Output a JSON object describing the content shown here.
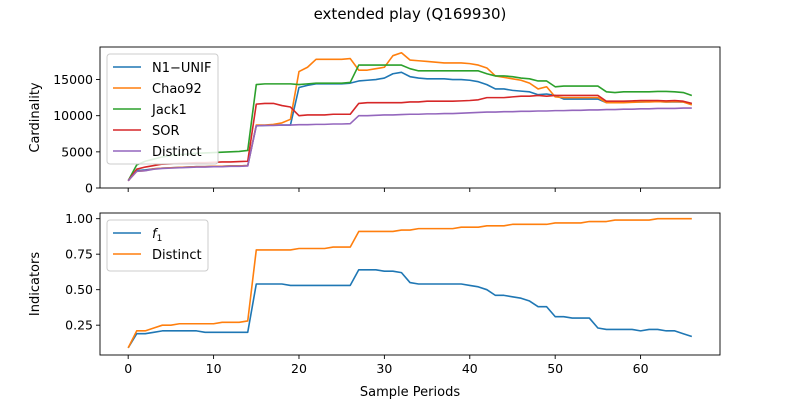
{
  "figure": {
    "title": "extended play (Q169930)",
    "xlabel": "Sample Periods"
  },
  "chart_data": [
    {
      "type": "line",
      "ylabel": "Cardinality",
      "xlim": [
        -3.3,
        69.3
      ],
      "ylim": [
        0,
        19500
      ],
      "xticks": [
        0,
        10,
        20,
        30,
        40,
        50,
        60
      ],
      "yticks": [
        0,
        5000,
        10000,
        15000
      ],
      "show_xtick_labels": false,
      "legend": "upper-left",
      "series": [
        {
          "name": "N1−UNIF",
          "color": "#1f77b4",
          "x": [
            0,
            1,
            2,
            3,
            4,
            5,
            6,
            7,
            8,
            9,
            10,
            11,
            12,
            13,
            14,
            15,
            16,
            17,
            18,
            19,
            20,
            21,
            22,
            23,
            24,
            25,
            26,
            27,
            28,
            29,
            30,
            31,
            32,
            33,
            34,
            35,
            36,
            37,
            38,
            39,
            40,
            41,
            42,
            43,
            44,
            45,
            46,
            47,
            48,
            49,
            50,
            51,
            52,
            53,
            54,
            55,
            56,
            57,
            58,
            59,
            60,
            61,
            62,
            63,
            64,
            65,
            66
          ],
          "values": [
            1000,
            2400,
            2500,
            2650,
            2750,
            2800,
            2850,
            2900,
            2950,
            2950,
            3000,
            3000,
            3050,
            3050,
            3100,
            8600,
            8650,
            8700,
            8700,
            8700,
            13900,
            14200,
            14400,
            14400,
            14400,
            14400,
            14500,
            14800,
            14900,
            15000,
            15200,
            15800,
            16000,
            15400,
            15200,
            15100,
            15100,
            15100,
            15000,
            15000,
            14900,
            14700,
            14300,
            13700,
            13700,
            13500,
            13400,
            13300,
            12900,
            13000,
            12800,
            12300,
            12300,
            12300,
            12300,
            12300,
            11800,
            11800,
            11850,
            11900,
            11900,
            11950,
            11950,
            11900,
            11900,
            11900,
            11600
          ]
        },
        {
          "name": "Chao92",
          "color": "#ff7f0e",
          "x": [
            0,
            1,
            2,
            3,
            4,
            5,
            6,
            7,
            8,
            9,
            10,
            11,
            12,
            13,
            14,
            15,
            16,
            17,
            18,
            19,
            20,
            21,
            22,
            23,
            24,
            25,
            26,
            27,
            28,
            29,
            30,
            31,
            32,
            33,
            34,
            35,
            36,
            37,
            38,
            39,
            40,
            41,
            42,
            43,
            44,
            45,
            46,
            47,
            48,
            49,
            50,
            51,
            52,
            53,
            54,
            55,
            56,
            57,
            58,
            59,
            60,
            61,
            62,
            63,
            64,
            65,
            66
          ],
          "values": [
            1000,
            2300,
            2400,
            2650,
            2750,
            2800,
            2850,
            2900,
            2950,
            2950,
            3000,
            3000,
            3050,
            3050,
            3100,
            8700,
            8700,
            8800,
            9000,
            9500,
            16100,
            16700,
            17800,
            17800,
            17800,
            17800,
            17900,
            16300,
            16300,
            16500,
            16700,
            18300,
            18700,
            17700,
            17600,
            17500,
            17400,
            17300,
            17300,
            17300,
            17200,
            17000,
            16600,
            15500,
            15300,
            15100,
            14900,
            14500,
            13700,
            14000,
            12600,
            12500,
            12500,
            12500,
            12500,
            12500,
            11800,
            11800,
            11800,
            11850,
            11900,
            11900,
            11950,
            11900,
            11950,
            11900,
            11500
          ]
        },
        {
          "name": "Jack1",
          "color": "#2ca02c",
          "x": [
            0,
            1,
            2,
            3,
            4,
            5,
            6,
            7,
            8,
            9,
            10,
            11,
            12,
            13,
            14,
            15,
            16,
            17,
            18,
            19,
            20,
            21,
            22,
            23,
            24,
            25,
            26,
            27,
            28,
            29,
            30,
            31,
            32,
            33,
            34,
            35,
            36,
            37,
            38,
            39,
            40,
            41,
            42,
            43,
            44,
            45,
            46,
            47,
            48,
            49,
            50,
            51,
            52,
            53,
            54,
            55,
            56,
            57,
            58,
            59,
            60,
            61,
            62,
            63,
            64,
            65,
            66
          ],
          "values": [
            1000,
            3200,
            3700,
            4000,
            4300,
            4500,
            4600,
            4700,
            4800,
            4850,
            4900,
            4950,
            5000,
            5050,
            5200,
            14300,
            14400,
            14400,
            14400,
            14400,
            14300,
            14400,
            14500,
            14500,
            14500,
            14500,
            14600,
            17000,
            17000,
            17000,
            17000,
            17000,
            17000,
            16500,
            16200,
            16200,
            16200,
            16200,
            16200,
            16200,
            16200,
            16200,
            15800,
            15500,
            15500,
            15400,
            15200,
            15100,
            14800,
            14800,
            14000,
            14100,
            14100,
            14100,
            14100,
            14100,
            13300,
            13200,
            13300,
            13300,
            13300,
            13300,
            13350,
            13350,
            13300,
            13200,
            12800
          ]
        },
        {
          "name": "SOR",
          "color": "#d62728",
          "x": [
            0,
            1,
            2,
            3,
            4,
            5,
            6,
            7,
            8,
            9,
            10,
            11,
            12,
            13,
            14,
            15,
            16,
            17,
            18,
            19,
            20,
            21,
            22,
            23,
            24,
            25,
            26,
            27,
            28,
            29,
            30,
            31,
            32,
            33,
            34,
            35,
            36,
            37,
            38,
            39,
            40,
            41,
            42,
            43,
            44,
            45,
            46,
            47,
            48,
            49,
            50,
            51,
            52,
            53,
            54,
            55,
            56,
            57,
            58,
            59,
            60,
            61,
            62,
            63,
            64,
            65,
            66
          ],
          "values": [
            1000,
            2600,
            2900,
            3100,
            3300,
            3350,
            3400,
            3450,
            3500,
            3500,
            3550,
            3600,
            3600,
            3650,
            3700,
            11600,
            11700,
            11700,
            11400,
            11200,
            10000,
            10100,
            10100,
            10100,
            10200,
            10200,
            10200,
            11700,
            11800,
            11800,
            11800,
            11800,
            11800,
            11900,
            11900,
            12000,
            12000,
            12000,
            12000,
            12050,
            12100,
            12200,
            12500,
            12500,
            12500,
            12600,
            12700,
            12700,
            12800,
            12700,
            12800,
            12800,
            12800,
            12800,
            12800,
            12800,
            12000,
            12000,
            12000,
            12050,
            12100,
            12100,
            12100,
            12050,
            12100,
            12000,
            11700
          ]
        },
        {
          "name": "Distinct",
          "color": "#9467bd",
          "x": [
            0,
            1,
            2,
            3,
            4,
            5,
            6,
            7,
            8,
            9,
            10,
            11,
            12,
            13,
            14,
            15,
            16,
            17,
            18,
            19,
            20,
            21,
            22,
            23,
            24,
            25,
            26,
            27,
            28,
            29,
            30,
            31,
            32,
            33,
            34,
            35,
            36,
            37,
            38,
            39,
            40,
            41,
            42,
            43,
            44,
            45,
            46,
            47,
            48,
            49,
            50,
            51,
            52,
            53,
            54,
            55,
            56,
            57,
            58,
            59,
            60,
            61,
            62,
            63,
            64,
            65,
            66
          ],
          "values": [
            1000,
            2300,
            2400,
            2600,
            2700,
            2750,
            2800,
            2850,
            2900,
            2900,
            2950,
            2950,
            3000,
            3000,
            3050,
            8600,
            8650,
            8650,
            8700,
            8700,
            8750,
            8750,
            8800,
            8800,
            8850,
            8850,
            8900,
            10000,
            10000,
            10050,
            10100,
            10100,
            10150,
            10200,
            10200,
            10250,
            10250,
            10300,
            10300,
            10350,
            10400,
            10450,
            10500,
            10500,
            10550,
            10550,
            10600,
            10600,
            10650,
            10650,
            10700,
            10700,
            10750,
            10750,
            10800,
            10800,
            10850,
            10850,
            10900,
            10900,
            10950,
            10950,
            11000,
            11000,
            11000,
            11050,
            11050
          ]
        }
      ]
    },
    {
      "type": "line",
      "ylabel": "Indicators",
      "xlim": [
        -3.3,
        69.3
      ],
      "ylim": [
        0.04,
        1.04
      ],
      "xticks": [
        0,
        10,
        20,
        30,
        40,
        50,
        60
      ],
      "yticks": [
        0.25,
        0.5,
        0.75,
        1.0
      ],
      "ytick_labels": [
        "0.25",
        "0.50",
        "0.75",
        "1.00"
      ],
      "show_xtick_labels": true,
      "legend": "upper-left",
      "series": [
        {
          "name": "f_1",
          "legend_main": "f",
          "legend_sub": "1",
          "color": "#1f77b4",
          "x": [
            0,
            1,
            2,
            3,
            4,
            5,
            6,
            7,
            8,
            9,
            10,
            11,
            12,
            13,
            14,
            15,
            16,
            17,
            18,
            19,
            20,
            21,
            22,
            23,
            24,
            25,
            26,
            27,
            28,
            29,
            30,
            31,
            32,
            33,
            34,
            35,
            36,
            37,
            38,
            39,
            40,
            41,
            42,
            43,
            44,
            45,
            46,
            47,
            48,
            49,
            50,
            51,
            52,
            53,
            54,
            55,
            56,
            57,
            58,
            59,
            60,
            61,
            62,
            63,
            64,
            65,
            66
          ],
          "values": [
            0.09,
            0.19,
            0.19,
            0.2,
            0.21,
            0.21,
            0.21,
            0.21,
            0.21,
            0.2,
            0.2,
            0.2,
            0.2,
            0.2,
            0.2,
            0.54,
            0.54,
            0.54,
            0.54,
            0.53,
            0.53,
            0.53,
            0.53,
            0.53,
            0.53,
            0.53,
            0.53,
            0.64,
            0.64,
            0.64,
            0.63,
            0.63,
            0.62,
            0.55,
            0.54,
            0.54,
            0.54,
            0.54,
            0.54,
            0.54,
            0.53,
            0.52,
            0.5,
            0.46,
            0.46,
            0.45,
            0.44,
            0.42,
            0.38,
            0.38,
            0.31,
            0.31,
            0.3,
            0.3,
            0.3,
            0.23,
            0.22,
            0.22,
            0.22,
            0.22,
            0.21,
            0.22,
            0.22,
            0.21,
            0.21,
            0.19,
            0.17
          ]
        },
        {
          "name": "Distinct",
          "color": "#ff7f0e",
          "x": [
            0,
            1,
            2,
            3,
            4,
            5,
            6,
            7,
            8,
            9,
            10,
            11,
            12,
            13,
            14,
            15,
            16,
            17,
            18,
            19,
            20,
            21,
            22,
            23,
            24,
            25,
            26,
            27,
            28,
            29,
            30,
            31,
            32,
            33,
            34,
            35,
            36,
            37,
            38,
            39,
            40,
            41,
            42,
            43,
            44,
            45,
            46,
            47,
            48,
            49,
            50,
            51,
            52,
            53,
            54,
            55,
            56,
            57,
            58,
            59,
            60,
            61,
            62,
            63,
            64,
            65,
            66
          ],
          "values": [
            0.09,
            0.21,
            0.21,
            0.23,
            0.25,
            0.25,
            0.26,
            0.26,
            0.26,
            0.26,
            0.26,
            0.27,
            0.27,
            0.27,
            0.28,
            0.78,
            0.78,
            0.78,
            0.78,
            0.78,
            0.79,
            0.79,
            0.79,
            0.79,
            0.8,
            0.8,
            0.8,
            0.91,
            0.91,
            0.91,
            0.91,
            0.91,
            0.92,
            0.92,
            0.93,
            0.93,
            0.93,
            0.93,
            0.93,
            0.94,
            0.94,
            0.94,
            0.95,
            0.95,
            0.95,
            0.96,
            0.96,
            0.96,
            0.96,
            0.96,
            0.97,
            0.97,
            0.97,
            0.97,
            0.98,
            0.98,
            0.98,
            0.99,
            0.99,
            0.99,
            0.99,
            0.99,
            1.0,
            1.0,
            1.0,
            1.0,
            1.0
          ]
        }
      ]
    }
  ]
}
